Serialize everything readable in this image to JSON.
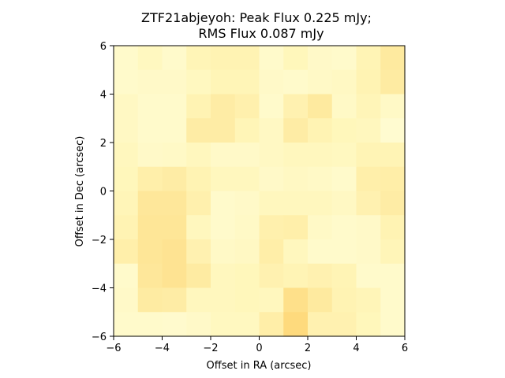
{
  "chart_data": {
    "type": "heatmap",
    "title_line1": "ZTF21abjeyoh: Peak Flux 0.225 mJy;",
    "title_line2": "RMS Flux 0.087 mJy",
    "xlabel": "Offset in RA (arcsec)",
    "ylabel": "Offset in Dec (arcsec)",
    "xlim": [
      -6,
      6
    ],
    "ylim": [
      -6,
      6
    ],
    "xticks": [
      -6,
      -4,
      -2,
      0,
      2,
      4,
      6
    ],
    "yticks": [
      -6,
      -4,
      -2,
      0,
      2,
      4,
      6
    ],
    "xtick_labels": [
      "−6",
      "−4",
      "−2",
      "0",
      "2",
      "4",
      "6"
    ],
    "ytick_labels": [
      "−6",
      "−4",
      "−2",
      "0",
      "2",
      "4",
      "6"
    ],
    "grid_size": 12,
    "colormap": "YlOrBr",
    "row_order": "top-to-bottom (Dec +6 to -6), columns RA -6 to +6",
    "values": [
      [
        0.2,
        0.28,
        0.2,
        0.35,
        0.38,
        0.38,
        0.2,
        0.32,
        0.22,
        0.2,
        0.36,
        0.52
      ],
      [
        0.2,
        0.22,
        0.22,
        0.28,
        0.35,
        0.35,
        0.22,
        0.2,
        0.24,
        0.26,
        0.38,
        0.5
      ],
      [
        0.26,
        0.2,
        0.2,
        0.38,
        0.48,
        0.42,
        0.2,
        0.4,
        0.52,
        0.24,
        0.34,
        0.24
      ],
      [
        0.26,
        0.2,
        0.2,
        0.48,
        0.48,
        0.35,
        0.26,
        0.48,
        0.38,
        0.32,
        0.3,
        0.16
      ],
      [
        0.3,
        0.22,
        0.24,
        0.3,
        0.22,
        0.22,
        0.26,
        0.3,
        0.3,
        0.28,
        0.36,
        0.36
      ],
      [
        0.32,
        0.44,
        0.48,
        0.38,
        0.3,
        0.3,
        0.22,
        0.26,
        0.24,
        0.2,
        0.44,
        0.46
      ],
      [
        0.34,
        0.56,
        0.56,
        0.42,
        0.2,
        0.22,
        0.3,
        0.3,
        0.3,
        0.26,
        0.4,
        0.48
      ],
      [
        0.38,
        0.58,
        0.58,
        0.3,
        0.2,
        0.24,
        0.42,
        0.44,
        0.24,
        0.2,
        0.22,
        0.38
      ],
      [
        0.44,
        0.58,
        0.62,
        0.4,
        0.24,
        0.26,
        0.46,
        0.3,
        0.2,
        0.2,
        0.22,
        0.34
      ],
      [
        0.2,
        0.56,
        0.62,
        0.5,
        0.3,
        0.32,
        0.4,
        0.36,
        0.4,
        0.36,
        0.2,
        0.2
      ],
      [
        0.22,
        0.5,
        0.48,
        0.3,
        0.3,
        0.32,
        0.3,
        0.66,
        0.52,
        0.38,
        0.34,
        0.2
      ],
      [
        0.2,
        0.2,
        0.18,
        0.22,
        0.28,
        0.28,
        0.46,
        0.72,
        0.4,
        0.4,
        0.32,
        0.2
      ]
    ]
  }
}
